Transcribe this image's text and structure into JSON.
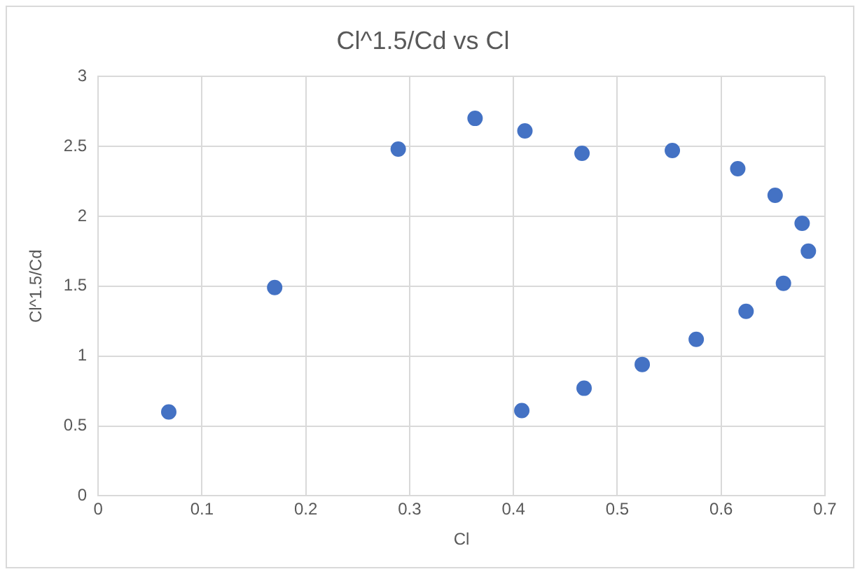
{
  "chart_data": {
    "type": "scatter",
    "title": "Cl^1.5/Cd vs Cl",
    "xlabel": "Cl",
    "ylabel": "Cl^1.5/Cd",
    "x": [
      0.068,
      0.17,
      0.289,
      0.363,
      0.411,
      0.466,
      0.553,
      0.616,
      0.652,
      0.678,
      0.684,
      0.66,
      0.624,
      0.576,
      0.524,
      0.468,
      0.408
    ],
    "series": [
      {
        "color": "#4472c4",
        "values": [
          0.6,
          1.49,
          2.48,
          2.7,
          2.61,
          2.45,
          2.47,
          2.34,
          2.15,
          1.95,
          1.75,
          1.52,
          1.32,
          1.12,
          0.94,
          0.77,
          0.61
        ]
      }
    ],
    "xlim": [
      0,
      0.7
    ],
    "xticks": [
      0,
      0.1,
      0.2,
      0.3,
      0.4,
      0.5,
      0.6,
      0.7
    ],
    "ylim": [
      0,
      3
    ],
    "yticks": [
      0,
      0.5,
      1,
      1.5,
      2,
      2.5,
      3
    ],
    "grid": true,
    "legend": false,
    "marker": "circle"
  }
}
